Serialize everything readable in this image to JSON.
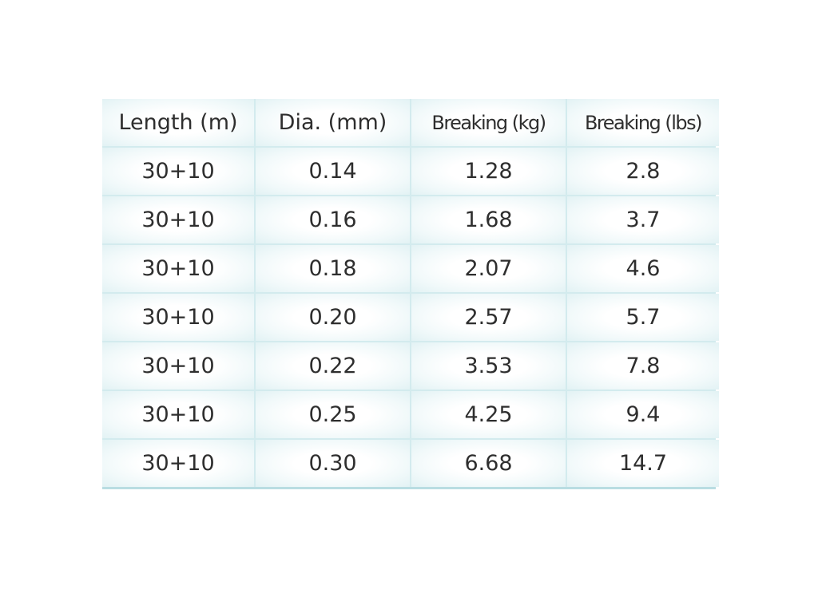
{
  "table": {
    "header": [
      "Length (m)",
      "Dia. (mm)",
      "Breaking (kg)",
      "Breaking (lbs)"
    ],
    "rows": [
      [
        "30+10",
        "0.14",
        "1.28",
        "2.8"
      ],
      [
        "30+10",
        "0.16",
        "1.68",
        "3.7"
      ],
      [
        "30+10",
        "0.18",
        "2.07",
        "4.6"
      ],
      [
        "30+10",
        "0.20",
        "2.57",
        "5.7"
      ],
      [
        "30+10",
        "0.22",
        "3.53",
        "7.8"
      ],
      [
        "30+10",
        "0.25",
        "4.25",
        "9.4"
      ],
      [
        "30+10",
        "0.30",
        "6.68",
        "14.7"
      ]
    ]
  }
}
